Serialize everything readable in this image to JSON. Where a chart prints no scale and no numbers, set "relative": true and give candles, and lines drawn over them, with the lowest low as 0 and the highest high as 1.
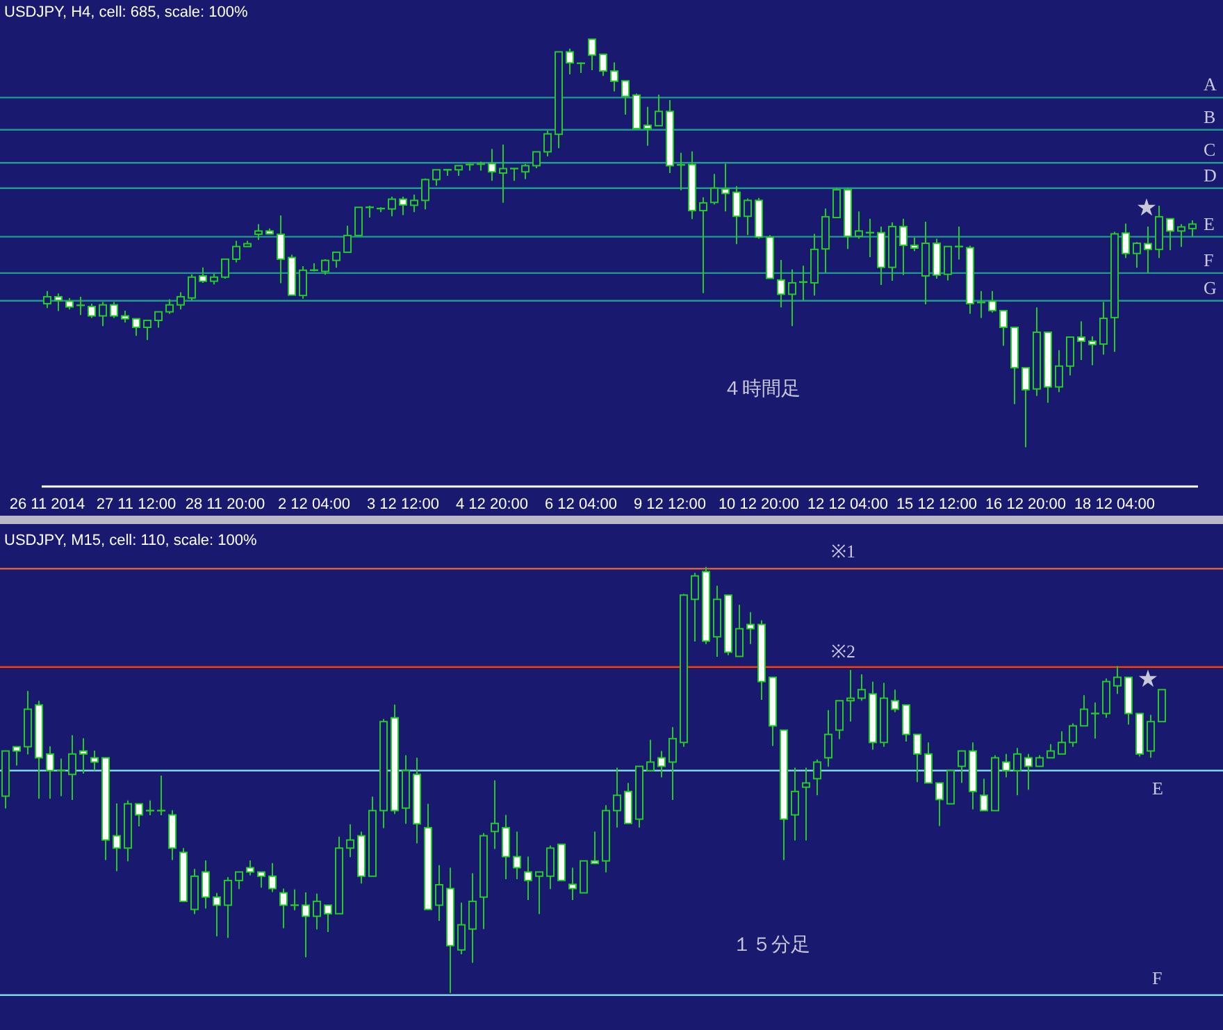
{
  "chart_data": [
    {
      "type": "candlestick",
      "title": "USDJPY, H4, cell: 685, scale: 100%",
      "relative": true,
      "grid": false,
      "tick_labels": "x",
      "categories": [
        "26 11 2014",
        null,
        null,
        null,
        null,
        null,
        null,
        null,
        "27 11 12:00",
        null,
        null,
        null,
        null,
        null,
        null,
        null,
        "28 11 20:00",
        null,
        null,
        null,
        null,
        null,
        null,
        null,
        "2 12 04:00",
        null,
        null,
        null,
        null,
        null,
        null,
        null,
        "3 12 12:00",
        null,
        null,
        null,
        null,
        null,
        null,
        null,
        "4 12 20:00",
        null,
        null,
        null,
        null,
        null,
        null,
        null,
        "6 12 04:00",
        null,
        null,
        null,
        null,
        null,
        null,
        null,
        "9 12 12:00",
        null,
        null,
        null,
        null,
        null,
        null,
        null,
        "10 12 20:00",
        null,
        null,
        null,
        null,
        null,
        null,
        null,
        "12 12 04:00",
        null,
        null,
        null,
        null,
        null,
        null,
        null,
        "15 12 12:00",
        null,
        null,
        null,
        null,
        null,
        null,
        null,
        "16 12 20:00",
        null,
        null,
        null,
        null,
        null,
        null,
        null,
        "18 12 04:00",
        null,
        null,
        null,
        null,
        null,
        null,
        null
      ],
      "ohlc": [
        [
          0.352,
          0.383,
          0.341,
          0.369
        ],
        [
          0.369,
          0.377,
          0.334,
          0.36
        ],
        [
          0.358,
          0.366,
          0.338,
          0.344
        ],
        [
          0.348,
          0.369,
          0.324,
          0.345
        ],
        [
          0.345,
          0.352,
          0.317,
          0.322
        ],
        [
          0.322,
          0.356,
          0.297,
          0.349
        ],
        [
          0.349,
          0.356,
          0.317,
          0.322
        ],
        [
          0.322,
          0.335,
          0.306,
          0.315
        ],
        [
          0.315,
          0.315,
          0.273,
          0.294
        ],
        [
          0.294,
          0.311,
          0.263,
          0.311
        ],
        [
          0.311,
          0.332,
          0.293,
          0.332
        ],
        [
          0.332,
          0.363,
          0.327,
          0.349
        ],
        [
          0.349,
          0.38,
          0.338,
          0.369
        ],
        [
          0.366,
          0.424,
          0.36,
          0.417
        ],
        [
          0.42,
          0.441,
          0.403,
          0.407
        ],
        [
          0.407,
          0.425,
          0.399,
          0.417
        ],
        [
          0.417,
          0.461,
          0.413,
          0.461
        ],
        [
          0.461,
          0.506,
          0.453,
          0.492
        ],
        [
          0.492,
          0.506,
          0.491,
          0.499
        ],
        [
          0.522,
          0.547,
          0.508,
          0.53
        ],
        [
          0.53,
          0.536,
          0.522,
          0.523
        ],
        [
          0.522,
          0.568,
          0.402,
          0.461
        ],
        [
          0.465,
          0.472,
          0.373,
          0.373
        ],
        [
          0.372,
          0.444,
          0.364,
          0.434
        ],
        [
          0.432,
          0.451,
          0.431,
          0.434
        ],
        [
          0.431,
          0.461,
          0.423,
          0.458
        ],
        [
          0.458,
          0.478,
          0.44,
          0.478
        ],
        [
          0.478,
          0.543,
          0.478,
          0.519
        ],
        [
          0.519,
          0.588,
          0.519,
          0.588
        ],
        [
          0.585,
          0.592,
          0.563,
          0.588
        ],
        [
          0.583,
          0.588,
          0.576,
          0.585
        ],
        [
          0.584,
          0.614,
          0.566,
          0.608
        ],
        [
          0.608,
          0.614,
          0.569,
          0.594
        ],
        [
          0.593,
          0.619,
          0.576,
          0.605
        ],
        [
          0.605,
          0.659,
          0.583,
          0.656
        ],
        [
          0.656,
          0.68,
          0.641,
          0.68
        ],
        [
          0.678,
          0.681,
          0.665,
          0.68
        ],
        [
          0.68,
          0.69,
          0.665,
          0.69
        ],
        [
          0.692,
          0.695,
          0.678,
          0.693
        ],
        [
          0.693,
          0.7,
          0.678,
          0.694
        ],
        [
          0.695,
          0.731,
          0.653,
          0.675
        ],
        [
          0.672,
          0.742,
          0.599,
          0.683
        ],
        [
          0.683,
          0.684,
          0.653,
          0.681
        ],
        [
          0.675,
          0.694,
          0.657,
          0.69
        ],
        [
          0.69,
          0.724,
          0.684,
          0.724
        ],
        [
          0.724,
          0.776,
          0.713,
          0.768
        ],
        [
          0.767,
          0.969,
          0.733,
          0.969
        ],
        [
          0.969,
          0.977,
          0.914,
          0.942
        ],
        [
          0.941,
          0.943,
          0.917,
          0.939
        ],
        [
          1.0,
          1.0,
          0.924,
          0.961
        ],
        [
          0.963,
          0.963,
          0.91,
          0.922
        ],
        [
          0.922,
          0.943,
          0.872,
          0.897
        ],
        [
          0.898,
          0.898,
          0.815,
          0.86
        ],
        [
          0.863,
          0.867,
          0.781,
          0.781
        ],
        [
          0.789,
          0.834,
          0.739,
          0.781
        ],
        [
          0.788,
          0.864,
          0.788,
          0.823
        ],
        [
          0.823,
          0.851,
          0.672,
          0.69
        ],
        [
          0.692,
          0.722,
          0.63,
          0.69
        ],
        [
          0.693,
          0.725,
          0.559,
          0.58
        ],
        [
          0.58,
          0.613,
          0.378,
          0.599
        ],
        [
          0.6,
          0.67,
          0.595,
          0.635
        ],
        [
          0.633,
          0.695,
          0.578,
          0.622
        ],
        [
          0.625,
          0.64,
          0.498,
          0.566
        ],
        [
          0.566,
          0.61,
          0.52,
          0.605
        ],
        [
          0.605,
          0.611,
          0.511,
          0.515
        ],
        [
          0.515,
          0.52,
          0.414,
          0.414
        ],
        [
          0.41,
          0.459,
          0.343,
          0.375
        ],
        [
          0.375,
          0.436,
          0.297,
          0.403
        ],
        [
          0.402,
          0.445,
          0.36,
          0.405
        ],
        [
          0.403,
          0.523,
          0.372,
          0.485
        ],
        [
          0.486,
          0.585,
          0.428,
          0.565
        ],
        [
          0.563,
          0.636,
          0.563,
          0.631
        ],
        [
          0.631,
          0.636,
          0.486,
          0.517
        ],
        [
          0.517,
          0.578,
          0.511,
          0.53
        ],
        [
          0.526,
          0.56,
          0.466,
          0.526
        ],
        [
          0.526,
          0.541,
          0.398,
          0.441
        ],
        [
          0.441,
          0.551,
          0.408,
          0.541
        ],
        [
          0.541,
          0.56,
          0.422,
          0.495
        ],
        [
          0.495,
          0.514,
          0.481,
          0.488
        ],
        [
          0.42,
          0.553,
          0.35,
          0.5
        ],
        [
          0.5,
          0.511,
          0.413,
          0.422
        ],
        [
          0.424,
          0.492,
          0.409,
          0.492
        ],
        [
          0.492,
          0.541,
          0.46,
          0.492
        ],
        [
          0.489,
          0.494,
          0.327,
          0.352
        ],
        [
          0.355,
          0.383,
          0.317,
          0.355
        ],
        [
          0.358,
          0.383,
          0.33,
          0.335
        ],
        [
          0.335,
          0.335,
          0.249,
          0.294
        ],
        [
          0.294,
          0.294,
          0.106,
          0.195
        ],
        [
          0.195,
          0.195,
          0.0,
          0.141
        ],
        [
          0.143,
          0.343,
          0.126,
          0.282
        ],
        [
          0.282,
          0.282,
          0.109,
          0.148
        ],
        [
          0.148,
          0.238,
          0.135,
          0.199
        ],
        [
          0.199,
          0.27,
          0.176,
          0.27
        ],
        [
          0.27,
          0.309,
          0.214,
          0.26
        ],
        [
          0.26,
          0.272,
          0.201,
          0.252
        ],
        [
          0.253,
          0.356,
          0.227,
          0.316
        ],
        [
          0.318,
          0.528,
          0.234,
          0.523
        ],
        [
          0.525,
          0.548,
          0.464,
          0.475
        ],
        [
          0.475,
          0.503,
          0.44,
          0.5
        ],
        [
          0.499,
          0.541,
          0.427,
          0.485
        ],
        [
          0.485,
          0.592,
          0.464,
          0.565
        ],
        [
          0.56,
          0.56,
          0.483,
          0.53
        ],
        [
          0.53,
          0.547,
          0.491,
          0.54
        ],
        [
          0.536,
          0.556,
          0.516,
          0.547
        ]
      ],
      "ref_lines": [
        {
          "axis": "y",
          "value": 0.857,
          "label": "A",
          "color": "#1f9a8f"
        },
        {
          "axis": "y",
          "value": 0.778,
          "label": "B",
          "color": "#1f9a8f"
        },
        {
          "axis": "y",
          "value": 0.697,
          "label": "C",
          "color": "#1f9a8f"
        },
        {
          "axis": "y",
          "value": 0.635,
          "label": "D",
          "color": "#1f9a8f"
        },
        {
          "axis": "y",
          "value": 0.516,
          "label": "E",
          "color": "#1f9a8f"
        },
        {
          "axis": "y",
          "value": 0.427,
          "label": "F",
          "color": "#1f9a8f"
        },
        {
          "axis": "y",
          "value": 0.359,
          "label": "G",
          "color": "#1f9a8f"
        }
      ],
      "annotations": [
        "★",
        "４時間足"
      ]
    },
    {
      "type": "candlestick",
      "title": "USDJPY, M15, cell: 110, scale: 100%",
      "relative": true,
      "grid": false,
      "tick_labels": false,
      "categories": [
        null,
        null,
        null,
        null,
        null,
        null,
        null,
        null,
        null,
        null,
        null,
        null,
        null,
        null,
        null,
        null,
        null,
        null,
        null,
        null,
        null,
        null,
        null,
        null,
        null,
        null,
        null,
        null,
        null,
        null,
        null,
        null,
        null,
        null,
        null,
        null,
        null,
        null,
        null,
        null,
        null,
        null,
        null,
        null,
        null,
        null,
        null,
        null,
        null,
        null,
        null,
        null,
        null,
        null,
        null,
        null,
        null,
        null,
        null,
        null,
        null,
        null,
        null,
        null,
        null,
        null,
        null,
        null,
        null,
        null,
        null,
        null,
        null,
        null,
        null,
        null,
        null,
        null,
        null,
        null,
        null,
        null,
        null,
        null,
        null,
        null,
        null,
        null,
        null,
        null,
        null,
        null,
        null,
        null,
        null,
        null,
        null,
        null,
        null,
        null,
        null,
        null,
        null,
        null,
        null
      ],
      "ohlc": [
        [
          0.462,
          0.568,
          0.433,
          0.568
        ],
        [
          0.578,
          0.578,
          0.534,
          0.568
        ],
        [
          0.578,
          0.709,
          0.56,
          0.666
        ],
        [
          0.676,
          0.686,
          0.456,
          0.552
        ],
        [
          0.561,
          0.579,
          0.456,
          0.522
        ],
        [
          0.522,
          0.55,
          0.462,
          0.522
        ],
        [
          0.513,
          0.605,
          0.453,
          0.561
        ],
        [
          0.568,
          0.598,
          0.515,
          0.561
        ],
        [
          0.552,
          0.569,
          0.522,
          0.542
        ],
        [
          0.552,
          0.552,
          0.312,
          0.359
        ],
        [
          0.369,
          0.445,
          0.286,
          0.34
        ],
        [
          0.34,
          0.452,
          0.309,
          0.444
        ],
        [
          0.444,
          0.444,
          0.391,
          0.418
        ],
        [
          0.428,
          0.452,
          0.417,
          0.428
        ],
        [
          0.428,
          0.51,
          0.417,
          0.428
        ],
        [
          0.418,
          0.429,
          0.312,
          0.34
        ],
        [
          0.33,
          0.34,
          0.215,
          0.215
        ],
        [
          0.196,
          0.291,
          0.185,
          0.274
        ],
        [
          0.284,
          0.311,
          0.198,
          0.225
        ],
        [
          0.225,
          0.235,
          0.133,
          0.206
        ],
        [
          0.206,
          0.272,
          0.129,
          0.264
        ],
        [
          0.264,
          0.284,
          0.244,
          0.284
        ],
        [
          0.294,
          0.311,
          0.276,
          0.284
        ],
        [
          0.284,
          0.284,
          0.247,
          0.274
        ],
        [
          0.274,
          0.305,
          0.237,
          0.245
        ],
        [
          0.235,
          0.245,
          0.152,
          0.206
        ],
        [
          0.206,
          0.243,
          0.194,
          0.206
        ],
        [
          0.206,
          0.236,
          0.084,
          0.18
        ],
        [
          0.18,
          0.233,
          0.149,
          0.215
        ],
        [
          0.206,
          0.206,
          0.143,
          0.186
        ],
        [
          0.186,
          0.367,
          0.186,
          0.34
        ],
        [
          0.34,
          0.396,
          0.319,
          0.359
        ],
        [
          0.369,
          0.379,
          0.257,
          0.274
        ],
        [
          0.274,
          0.461,
          0.274,
          0.428
        ],
        [
          0.428,
          0.643,
          0.387,
          0.637
        ],
        [
          0.646,
          0.677,
          0.42,
          0.428
        ],
        [
          0.434,
          0.558,
          0.397,
          0.522
        ],
        [
          0.513,
          0.552,
          0.351,
          0.397
        ],
        [
          0.388,
          0.444,
          0.196,
          0.196
        ],
        [
          0.206,
          0.3,
          0.169,
          0.254
        ],
        [
          0.245,
          0.294,
          0.0,
          0.111
        ],
        [
          0.101,
          0.212,
          0.091,
          0.16
        ],
        [
          0.15,
          0.281,
          0.071,
          0.215
        ],
        [
          0.225,
          0.375,
          0.15,
          0.369
        ],
        [
          0.379,
          0.499,
          0.338,
          0.398
        ],
        [
          0.388,
          0.418,
          0.267,
          0.32
        ],
        [
          0.32,
          0.379,
          0.267,
          0.294
        ],
        [
          0.284,
          0.32,
          0.218,
          0.264
        ],
        [
          0.274,
          0.284,
          0.185,
          0.284
        ],
        [
          0.274,
          0.346,
          0.244,
          0.34
        ],
        [
          0.349,
          0.349,
          0.264,
          0.264
        ],
        [
          0.255,
          0.294,
          0.218,
          0.245
        ],
        [
          0.235,
          0.31,
          0.235,
          0.31
        ],
        [
          0.31,
          0.379,
          0.304,
          0.304
        ],
        [
          0.31,
          0.441,
          0.283,
          0.428
        ],
        [
          0.428,
          0.529,
          0.388,
          0.464
        ],
        [
          0.473,
          0.493,
          0.398,
          0.398
        ],
        [
          0.408,
          0.532,
          0.388,
          0.532
        ],
        [
          0.522,
          0.594,
          0.522,
          0.542
        ],
        [
          0.552,
          0.568,
          0.506,
          0.532
        ],
        [
          0.542,
          0.624,
          0.453,
          0.597
        ],
        [
          0.588,
          0.937,
          0.578,
          0.934
        ],
        [
          0.924,
          0.986,
          0.825,
          0.979
        ],
        [
          0.989,
          1.0,
          0.819,
          0.826
        ],
        [
          0.836,
          0.956,
          0.789,
          0.924
        ],
        [
          0.934,
          0.934,
          0.793,
          0.8
        ],
        [
          0.79,
          0.911,
          0.79,
          0.855
        ],
        [
          0.865,
          0.894,
          0.819,
          0.855
        ],
        [
          0.865,
          0.875,
          0.688,
          0.731
        ],
        [
          0.741,
          0.741,
          0.58,
          0.627
        ],
        [
          0.617,
          0.617,
          0.312,
          0.408
        ],
        [
          0.418,
          0.529,
          0.358,
          0.473
        ],
        [
          0.483,
          0.529,
          0.358,
          0.493
        ],
        [
          0.503,
          0.548,
          0.464,
          0.542
        ],
        [
          0.552,
          0.664,
          0.531,
          0.607
        ],
        [
          0.617,
          0.686,
          0.596,
          0.686
        ],
        [
          0.686,
          0.758,
          0.637,
          0.692
        ],
        [
          0.692,
          0.748,
          0.686,
          0.712
        ],
        [
          0.702,
          0.731,
          0.571,
          0.588
        ],
        [
          0.588,
          0.728,
          0.578,
          0.692
        ],
        [
          0.686,
          0.712,
          0.659,
          0.666
        ],
        [
          0.676,
          0.676,
          0.59,
          0.607
        ],
        [
          0.607,
          0.607,
          0.495,
          0.561
        ],
        [
          0.561,
          0.588,
          0.493,
          0.493
        ],
        [
          0.493,
          0.493,
          0.392,
          0.454
        ],
        [
          0.444,
          0.522,
          0.444,
          0.522
        ],
        [
          0.532,
          0.568,
          0.493,
          0.568
        ],
        [
          0.568,
          0.588,
          0.431,
          0.473
        ],
        [
          0.464,
          0.503,
          0.428,
          0.428
        ],
        [
          0.428,
          0.558,
          0.428,
          0.552
        ],
        [
          0.542,
          0.561,
          0.506,
          0.522
        ],
        [
          0.522,
          0.575,
          0.464,
          0.561
        ],
        [
          0.552,
          0.561,
          0.477,
          0.532
        ],
        [
          0.532,
          0.558,
          0.532,
          0.552
        ],
        [
          0.552,
          0.584,
          0.552,
          0.568
        ],
        [
          0.561,
          0.614,
          0.561,
          0.588
        ],
        [
          0.588,
          0.633,
          0.578,
          0.627
        ],
        [
          0.627,
          0.699,
          0.627,
          0.666
        ],
        [
          0.656,
          0.682,
          0.597,
          0.656
        ],
        [
          0.656,
          0.738,
          0.646,
          0.731
        ],
        [
          0.721,
          0.767,
          0.702,
          0.741
        ],
        [
          0.741,
          0.741,
          0.63,
          0.656
        ],
        [
          0.656,
          0.656,
          0.555,
          0.561
        ],
        [
          0.568,
          0.653,
          0.552,
          0.637
        ],
        [
          0.637,
          0.712,
          0.637,
          0.712
        ]
      ],
      "ref_lines": [
        {
          "axis": "y",
          "value": 0.996,
          "label": "※1",
          "color": "#d9603b"
        },
        {
          "axis": "y",
          "value": 0.765,
          "label": "※2",
          "color": "#ff3c00"
        },
        {
          "axis": "y",
          "value": 0.522,
          "label": "E",
          "color": "#7fd6e6"
        },
        {
          "axis": "y",
          "value": -0.005,
          "label": "F",
          "color": "#7fd6e6"
        }
      ],
      "annotations": [
        "★",
        "１５分足"
      ]
    }
  ]
}
